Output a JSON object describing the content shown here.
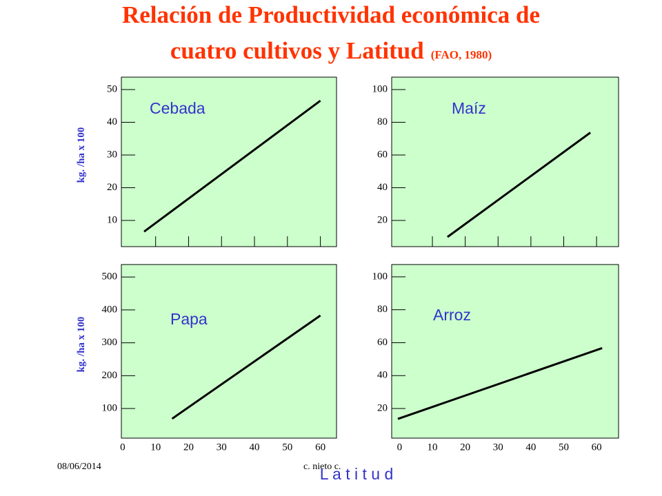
{
  "header": {
    "title": [
      "Relación de Productividad económica de",
      "cuatro cultivos y Latitud"
    ],
    "source": "(FAO, 1980)"
  },
  "chart_data": [
    {
      "type": "line",
      "title": "Cebada",
      "ylabel": "kg. /ha x 100",
      "color": "#000000",
      "x": [
        6.5,
        60
      ],
      "values": [
        6.6,
        46.6
      ],
      "xlim": [
        -0.4,
        64.9
      ],
      "xticks": [
        10,
        20,
        30,
        40,
        50,
        60
      ],
      "ylim": [
        2,
        53.8
      ],
      "yticks": [
        10,
        20,
        30,
        40,
        50
      ]
    },
    {
      "type": "line",
      "title": "Maíz",
      "color": "#000000",
      "x": [
        14.6,
        58.1
      ],
      "values": [
        9.9,
        73.7
      ],
      "xlim": [
        -2.4,
        66.7
      ],
      "xticks": [
        10,
        20,
        30,
        40,
        50,
        60
      ],
      "ylim": [
        4,
        107.6
      ],
      "yticks": [
        20,
        40,
        60,
        80,
        100
      ]
    },
    {
      "type": "line",
      "title": "Papa",
      "ylabel": "kg. /ha x 100",
      "color": "#000000",
      "x": [
        15,
        60
      ],
      "values": [
        69,
        383
      ],
      "xlim": [
        -0.4,
        64.9
      ],
      "xticks": [
        0,
        10,
        20,
        30,
        40,
        50,
        60
      ],
      "ylim": [
        10,
        538
      ],
      "yticks": [
        100,
        200,
        300,
        400,
        500
      ]
    },
    {
      "type": "line",
      "title": "Arroz",
      "color": "#000000",
      "x": [
        -0.5,
        61.7
      ],
      "values": [
        13.7,
        56.7
      ],
      "xlim": [
        -2.4,
        66.7
      ],
      "xticks": [
        0,
        10,
        20,
        30,
        40,
        50,
        60
      ],
      "ylim": [
        2,
        107.5
      ],
      "yticks": [
        20,
        40,
        60,
        80,
        100
      ]
    }
  ],
  "footer": {
    "date": "08/06/2014",
    "author": "c. nieto c.",
    "xlabel": "L a t i t u d"
  }
}
